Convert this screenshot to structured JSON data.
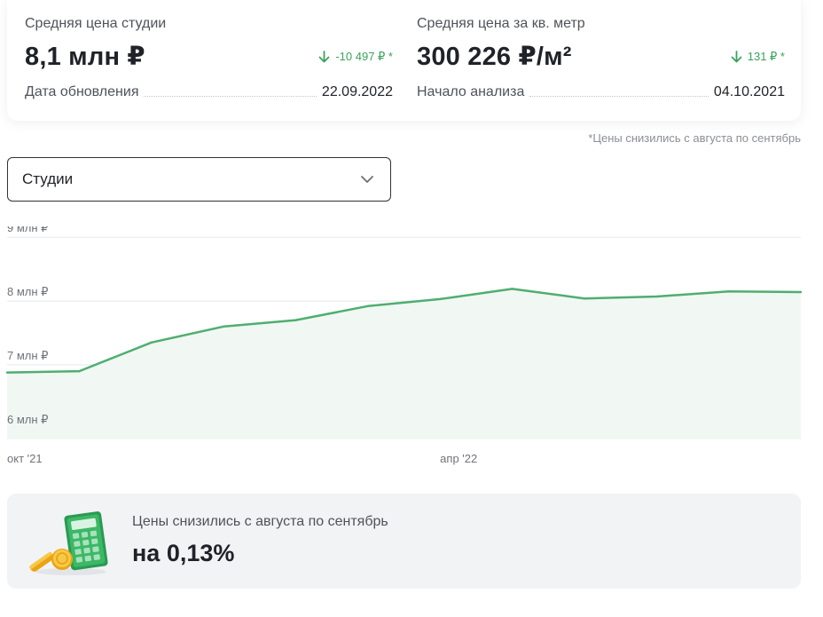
{
  "stats": {
    "studio": {
      "label": "Средняя цена студии",
      "value": "8,1 млн ₽",
      "delta": "-10 497 ₽ *",
      "row_label": "Дата обновления",
      "row_value": "22.09.2022"
    },
    "sqm": {
      "label": "Средняя цена за кв. метр",
      "value": "300 226 ₽/м²",
      "delta": "131 ₽ *",
      "row_label": "Начало анализа",
      "row_value": "04.10.2021"
    }
  },
  "footnote": "*Цены снизились с августа по сентябрь",
  "filter": {
    "selected": "Студии"
  },
  "colors": {
    "line": "#4fae70",
    "fill": "#f1f8f3",
    "delta": "#3aa35c"
  },
  "chart_data": {
    "type": "area",
    "x": [
      "2021-10",
      "2021-11",
      "2021-12",
      "2022-01",
      "2022-02",
      "2022-03",
      "2022-04",
      "2022-05",
      "2022-06",
      "2022-07",
      "2022-08",
      "2022-09"
    ],
    "values": [
      6.88,
      6.9,
      7.35,
      7.6,
      7.7,
      7.92,
      8.03,
      8.19,
      8.04,
      8.07,
      8.15,
      8.14
    ],
    "ylim": [
      5.83,
      9.17
    ],
    "yticks": [
      {
        "value": 9,
        "label": "9 млн ₽"
      },
      {
        "value": 8,
        "label": "8 млн ₽"
      },
      {
        "value": 7,
        "label": "7 млн ₽"
      },
      {
        "value": 6,
        "label": "6 млн ₽"
      }
    ],
    "xticks": [
      {
        "index": 0,
        "label": "окт '21"
      },
      {
        "index": 6,
        "label": "апр '22"
      }
    ],
    "grid": true,
    "legend": "none"
  },
  "banner": {
    "text": "Цены снизились с августа по сентябрь",
    "value": "на 0,13%",
    "illustration": "calculator-coins-icon"
  },
  "icons": {
    "delta": "arrow-down-icon",
    "select": "chevron-down-icon"
  }
}
